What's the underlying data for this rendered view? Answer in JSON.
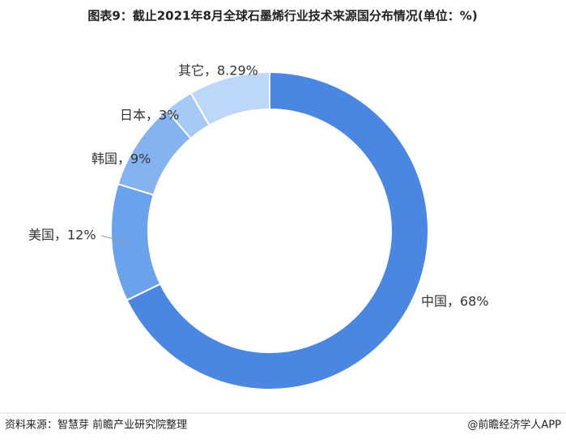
{
  "chart_data": {
    "type": "donut",
    "title": "图表9：截止2021年8月全球石墨烯行业技术来源国分布情况(单位：%)",
    "values": [
      68,
      12,
      9,
      3,
      8.29
    ],
    "value_labels": [
      "中国，68%",
      "美国，12%",
      "韩国，9%",
      "日本，3%",
      "其它，8.29%"
    ],
    "colors": [
      "#4a87e2",
      "#6ba2ec",
      "#84b3f0",
      "#a6c9f5",
      "#bcd7f8"
    ],
    "source": "资料来源：智慧芽 前瞻产业研究院整理",
    "brand": "@前瞻经济学人APP"
  }
}
